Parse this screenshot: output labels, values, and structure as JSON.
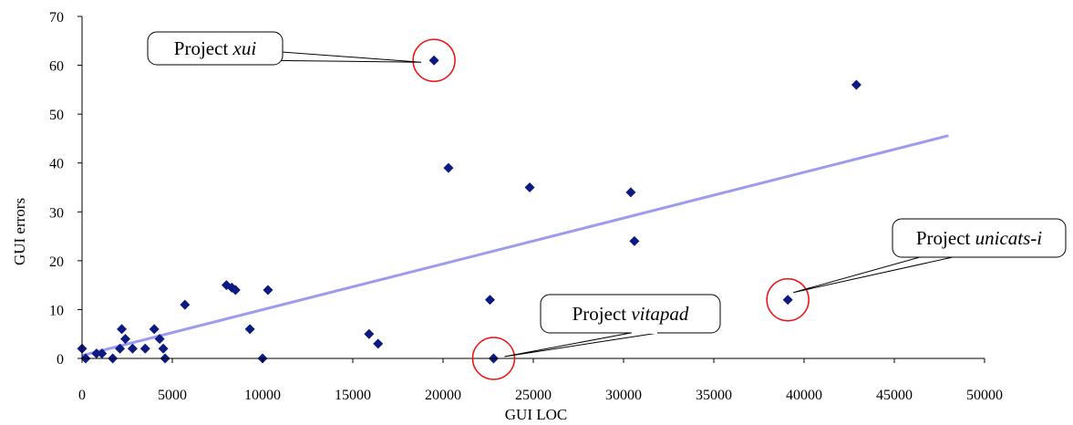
{
  "chart_data": {
    "type": "scatter",
    "xlabel": "GUI LOC",
    "ylabel": "GUI errors",
    "xlim": [
      0,
      50000
    ],
    "ylim": [
      0,
      70
    ],
    "xticks": [
      0,
      5000,
      10000,
      15000,
      20000,
      25000,
      30000,
      35000,
      40000,
      45000,
      50000
    ],
    "yticks": [
      0,
      10,
      20,
      30,
      40,
      50,
      60,
      70
    ],
    "grid": false,
    "legend": "none",
    "point_color": "#0c1a82",
    "trendline": {
      "color": "#9b9bf0",
      "x": [
        0,
        48000
      ],
      "y": [
        0.6,
        45.6
      ]
    },
    "points": [
      {
        "x": 0,
        "y": 2
      },
      {
        "x": 200,
        "y": 0
      },
      {
        "x": 800,
        "y": 1
      },
      {
        "x": 1100,
        "y": 1
      },
      {
        "x": 1700,
        "y": 0
      },
      {
        "x": 2100,
        "y": 2
      },
      {
        "x": 2200,
        "y": 6
      },
      {
        "x": 2400,
        "y": 4
      },
      {
        "x": 2800,
        "y": 2
      },
      {
        "x": 3500,
        "y": 2
      },
      {
        "x": 4000,
        "y": 6
      },
      {
        "x": 4300,
        "y": 4
      },
      {
        "x": 4500,
        "y": 2
      },
      {
        "x": 4600,
        "y": 0
      },
      {
        "x": 5700,
        "y": 11
      },
      {
        "x": 8000,
        "y": 15
      },
      {
        "x": 8300,
        "y": 14.5
      },
      {
        "x": 8500,
        "y": 14
      },
      {
        "x": 9300,
        "y": 6
      },
      {
        "x": 10000,
        "y": 0
      },
      {
        "x": 10300,
        "y": 14
      },
      {
        "x": 15900,
        "y": 5
      },
      {
        "x": 16400,
        "y": 3
      },
      {
        "x": 19500,
        "y": 61
      },
      {
        "x": 20300,
        "y": 39
      },
      {
        "x": 22600,
        "y": 12
      },
      {
        "x": 22800,
        "y": 0
      },
      {
        "x": 24800,
        "y": 35
      },
      {
        "x": 30400,
        "y": 34
      },
      {
        "x": 30600,
        "y": 24
      },
      {
        "x": 39100,
        "y": 12
      },
      {
        "x": 42900,
        "y": 56
      }
    ],
    "annotations": [
      {
        "prefix": "Project ",
        "name": "xui",
        "x": 19500,
        "y": 61
      },
      {
        "prefix": "Project ",
        "name": "vitapad",
        "x": 22800,
        "y": 0
      },
      {
        "prefix": "Project ",
        "name": "unicats-i",
        "x": 39100,
        "y": 12
      }
    ]
  }
}
